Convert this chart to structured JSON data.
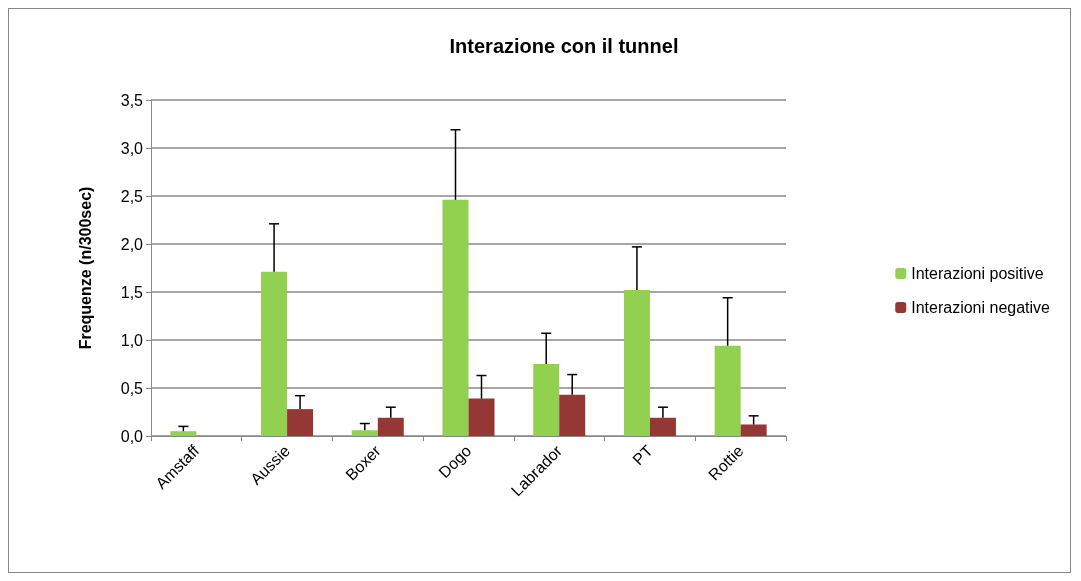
{
  "chart_data": {
    "type": "bar",
    "title": "Interazione con il tunnel",
    "ylabel": "Frequenze (n/300sec)",
    "categories": [
      "Amstaff",
      "Aussie",
      "Boxer",
      "Dogo",
      "Labrador",
      "PT",
      "Rottie"
    ],
    "series": [
      {
        "name": "Interazioni positive",
        "color": "#92d050",
        "values": [
          0.05,
          1.71,
          0.06,
          2.46,
          0.75,
          1.52,
          0.94
        ],
        "errors": [
          [
            0.05,
            0.1
          ],
          [
            1.71,
            2.21
          ],
          [
            0.06,
            0.13
          ],
          [
            2.46,
            3.19
          ],
          [
            0.75,
            1.07
          ],
          [
            1.52,
            1.97
          ],
          [
            0.94,
            1.44
          ]
        ]
      },
      {
        "name": "Interazioni negative",
        "color": "#953735",
        "values": [
          0,
          0.28,
          0.19,
          0.39,
          0.43,
          0.19,
          0.12
        ],
        "errors": [
          null,
          [
            0.28,
            0.42
          ],
          [
            0.19,
            0.3
          ],
          [
            0.39,
            0.63
          ],
          [
            0.43,
            0.64
          ],
          [
            0.19,
            0.3
          ],
          [
            0.12,
            0.21
          ]
        ]
      }
    ],
    "ylim": [
      0,
      3.5
    ],
    "yticks": [
      {
        "value": 0,
        "label": "0,0"
      },
      {
        "value": 0.5,
        "label": "0,5"
      },
      {
        "value": 1,
        "label": "1,0"
      },
      {
        "value": 1.5,
        "label": "1,5"
      },
      {
        "value": 2,
        "label": "2,0"
      },
      {
        "value": 2.5,
        "label": "2,5"
      },
      {
        "value": 3,
        "label": "3,0"
      },
      {
        "value": 3.5,
        "label": "3,5"
      }
    ],
    "grid": "y",
    "legend": "right"
  }
}
